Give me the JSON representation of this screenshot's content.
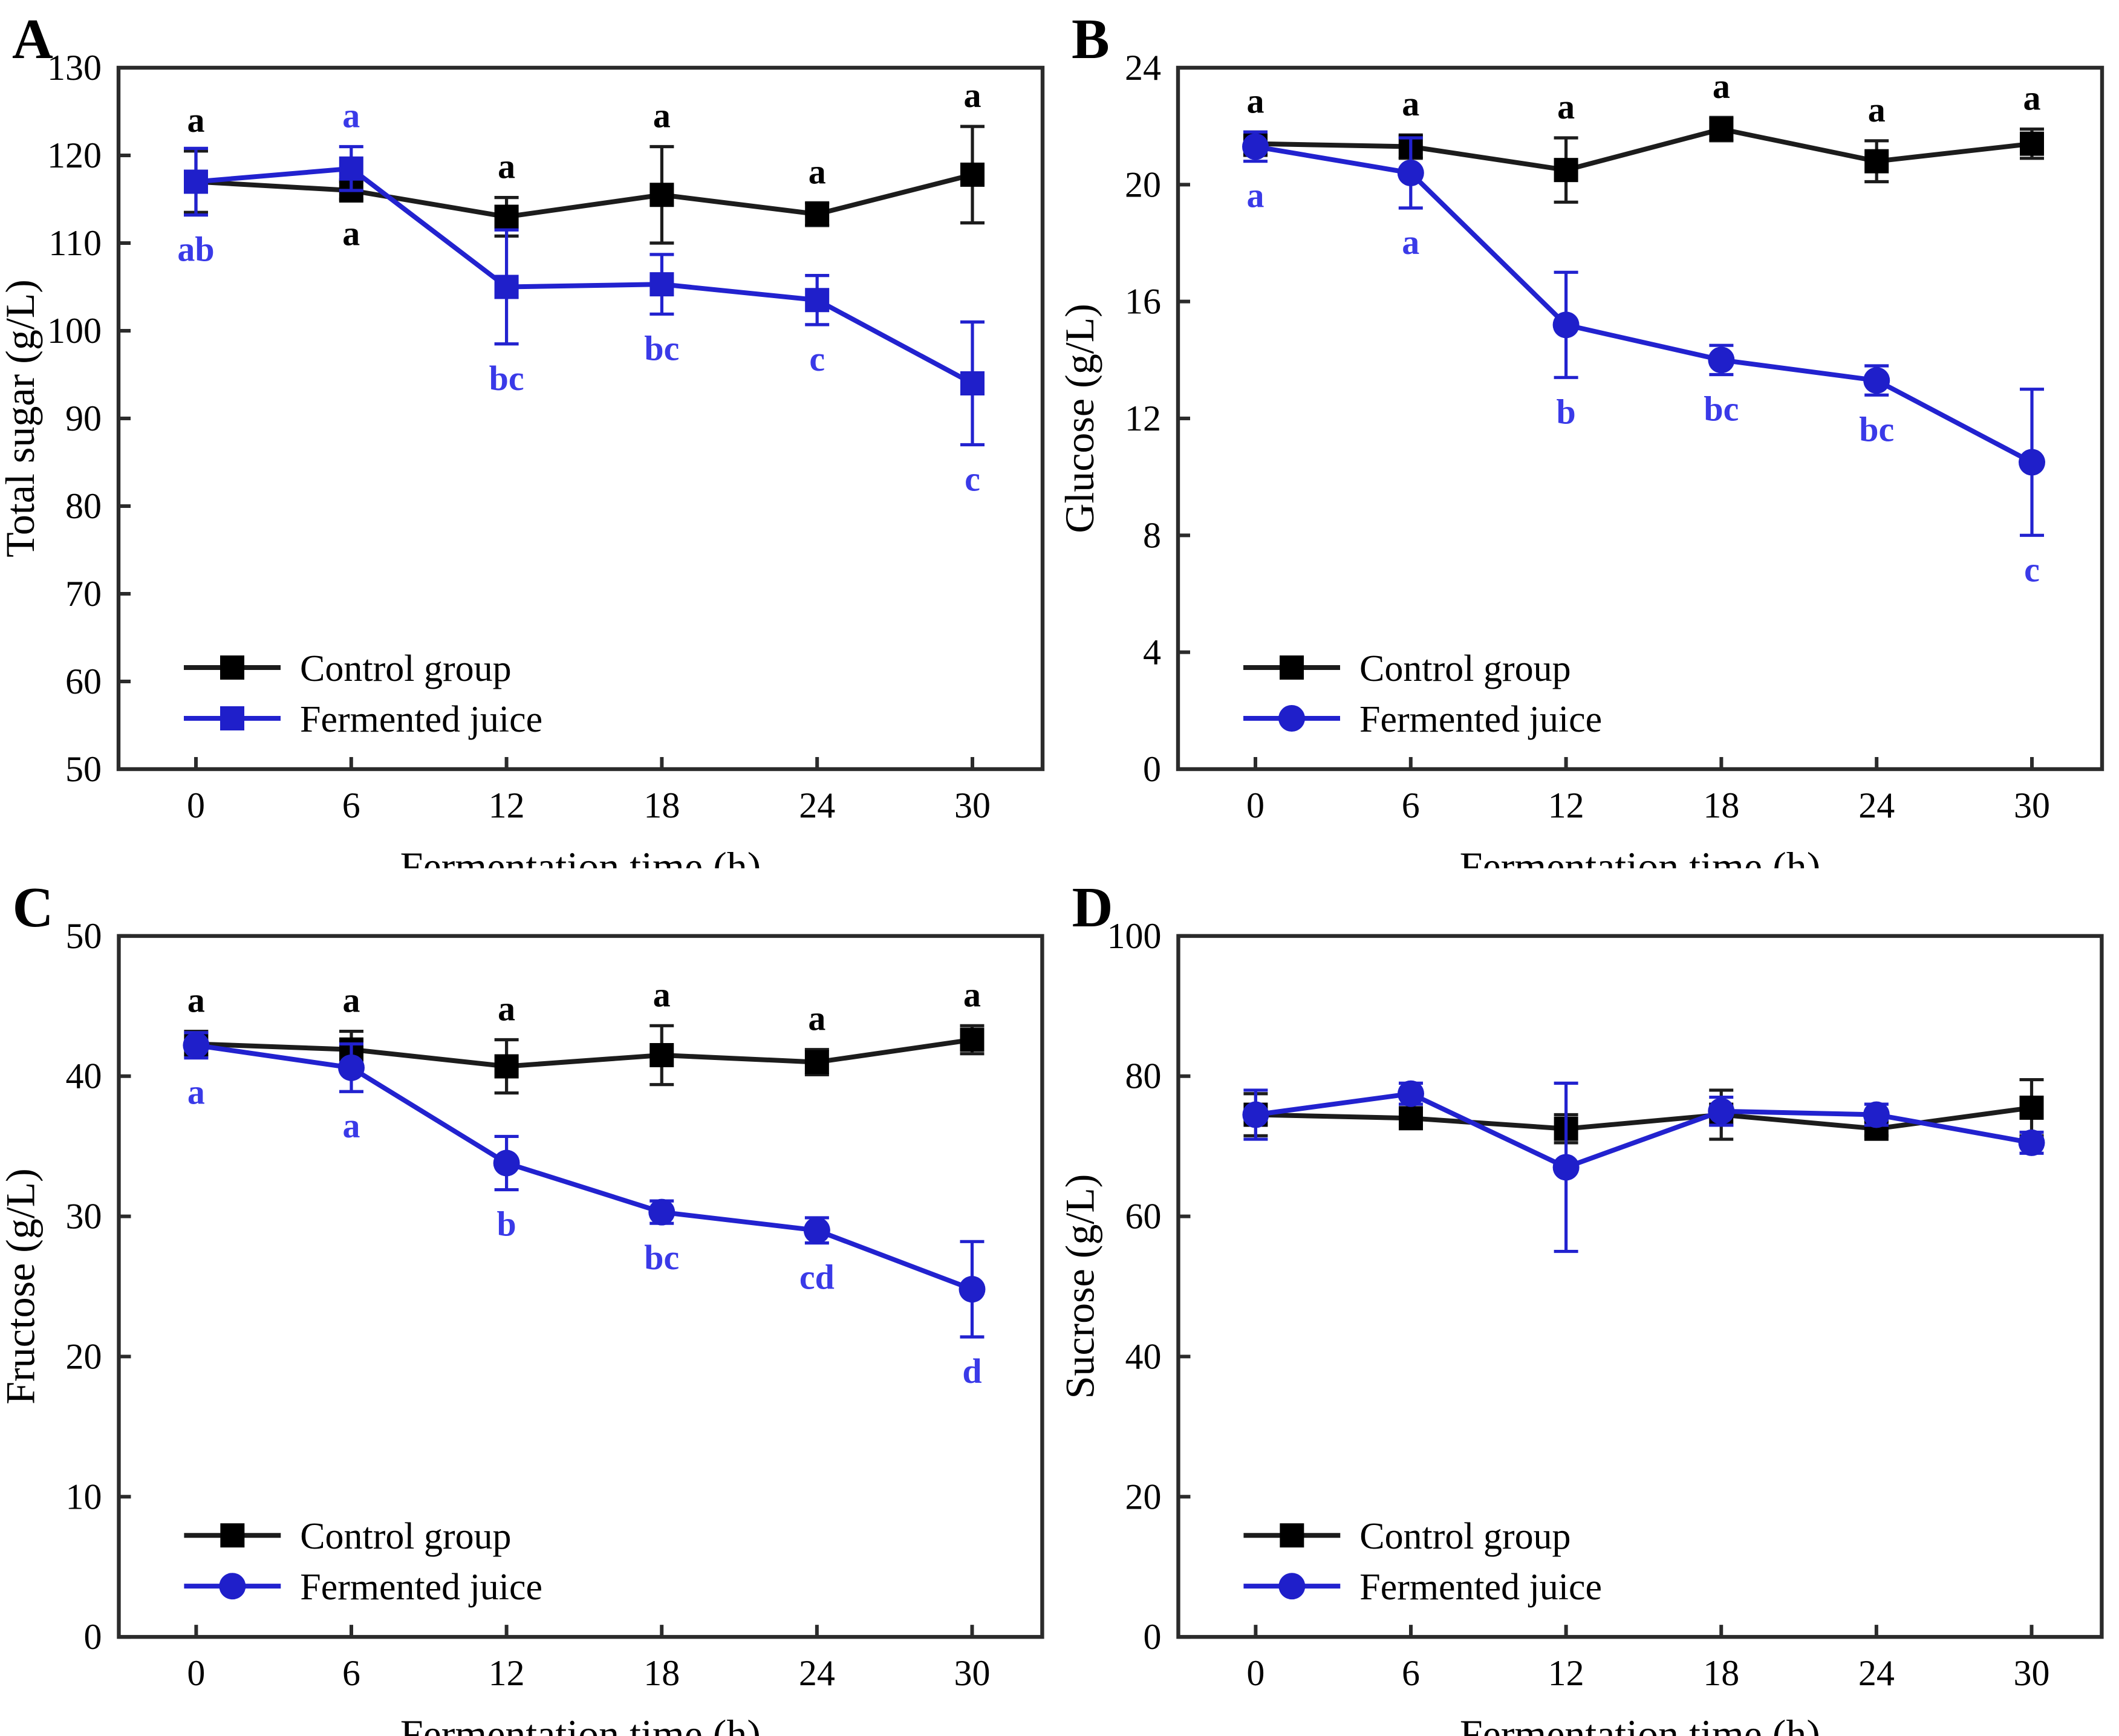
{
  "figure": {
    "background": "#ffffff",
    "x_axis_label": "Fermentation time (h)",
    "x_ticks": [
      0,
      6,
      12,
      18,
      24,
      30
    ],
    "legend": {
      "control_label": "Control group",
      "fermented_label": "Fermented juice"
    },
    "colors": {
      "control_line": "#1c1c1c",
      "control_marker": "#000000",
      "control_letter": "#000000",
      "fermented_line": "#2222cf",
      "fermented_marker": "#1f1fca",
      "fermented_letter": "#3a3ae8",
      "axis": "#2b2b2b",
      "tick_text": "#000000"
    }
  },
  "chart_data": [
    {
      "type": "line",
      "panel_letter": "A",
      "xlabel": "Fermentation time (h)",
      "ylabel": "Total sugar (g/L)",
      "ylim": [
        50,
        130
      ],
      "yticks": [
        50,
        60,
        70,
        80,
        90,
        100,
        110,
        120,
        130
      ],
      "x": [
        0,
        6,
        12,
        18,
        24,
        30
      ],
      "grid": false,
      "legend_position": "lower-left",
      "series": [
        {
          "name": "Control group",
          "marker": "square",
          "role": "control",
          "values": [
            117.0,
            116.0,
            113.0,
            115.5,
            113.3,
            117.8
          ],
          "errors": [
            3.5,
            1.0,
            2.2,
            5.5,
            1.3,
            5.5
          ],
          "letters": [
            "a",
            "a",
            "a",
            "a",
            "a",
            "a"
          ],
          "letter_side": [
            "above",
            "below",
            "above",
            "above",
            "above",
            "above"
          ]
        },
        {
          "name": "Fermented juice",
          "marker": "square",
          "role": "fermented",
          "values": [
            117.0,
            118.5,
            105.0,
            105.3,
            103.5,
            94.0
          ],
          "errors": [
            3.8,
            2.5,
            6.5,
            3.4,
            2.8,
            7.0
          ],
          "letters": [
            "ab",
            "a",
            "bc",
            "bc",
            "c",
            "c"
          ],
          "letter_side": [
            "below",
            "above",
            "below",
            "below",
            "below",
            "below"
          ]
        }
      ]
    },
    {
      "type": "line",
      "panel_letter": "B",
      "xlabel": "Fermentation time (h)",
      "ylabel": "Glucose  (g/L)",
      "ylim": [
        0,
        24
      ],
      "yticks": [
        0,
        4,
        8,
        12,
        16,
        20,
        24
      ],
      "x": [
        0,
        6,
        12,
        18,
        24,
        30
      ],
      "grid": false,
      "legend_position": "lower-left",
      "series": [
        {
          "name": "Control group",
          "marker": "square",
          "role": "control",
          "values": [
            21.4,
            21.3,
            20.5,
            21.9,
            20.8,
            21.4
          ],
          "errors": [
            0.4,
            0.4,
            1.1,
            0.4,
            0.7,
            0.5
          ],
          "letters": [
            "a",
            "a",
            "a",
            "a",
            "a",
            "a"
          ],
          "letter_side": [
            "above",
            "above",
            "above",
            "above",
            "above",
            "above"
          ]
        },
        {
          "name": "Fermented juice",
          "marker": "circle",
          "role": "fermented",
          "values": [
            21.3,
            20.4,
            15.2,
            14.0,
            13.3,
            10.5
          ],
          "errors": [
            0.5,
            1.2,
            1.8,
            0.5,
            0.5,
            2.5
          ],
          "letters": [
            "a",
            "a",
            "b",
            "bc",
            "bc",
            "c"
          ],
          "letter_side": [
            "below",
            "below",
            "below",
            "below",
            "below",
            "below"
          ]
        }
      ]
    },
    {
      "type": "line",
      "panel_letter": "C",
      "xlabel": "Fermentation time (h)",
      "ylabel": "Fructose (g/L)",
      "ylim": [
        0,
        50
      ],
      "yticks": [
        0,
        10,
        20,
        30,
        40,
        50
      ],
      "x": [
        0,
        6,
        12,
        18,
        24,
        30
      ],
      "grid": false,
      "legend_position": "lower-left",
      "series": [
        {
          "name": "Control group",
          "marker": "square",
          "role": "control",
          "values": [
            42.3,
            41.9,
            40.7,
            41.5,
            41.0,
            42.6
          ],
          "errors": [
            0.9,
            1.3,
            1.9,
            2.1,
            0.9,
            1.0
          ],
          "letters": [
            "a",
            "a",
            "a",
            "a",
            "a",
            "a"
          ],
          "letter_side": [
            "above",
            "above",
            "above",
            "above",
            "above",
            "above"
          ]
        },
        {
          "name": "Fermented juice",
          "marker": "circle",
          "role": "fermented",
          "values": [
            42.2,
            40.6,
            33.8,
            30.3,
            29.0,
            24.8
          ],
          "errors": [
            0.9,
            1.7,
            1.9,
            0.8,
            0.9,
            3.4
          ],
          "letters": [
            "a",
            "a",
            "b",
            "bc",
            "cd",
            "d"
          ],
          "letter_side": [
            "below",
            "below",
            "below",
            "below",
            "below",
            "below"
          ]
        }
      ]
    },
    {
      "type": "line",
      "panel_letter": "D",
      "xlabel": "Fermentation time (h)",
      "ylabel": "Sucrose (g/L)",
      "ylim": [
        0,
        100
      ],
      "yticks": [
        0,
        20,
        40,
        60,
        80,
        100
      ],
      "x": [
        0,
        6,
        12,
        18,
        24,
        30
      ],
      "grid": false,
      "legend_position": "lower-left",
      "series": [
        {
          "name": "Control group",
          "marker": "square",
          "role": "control",
          "values": [
            74.5,
            74.0,
            72.5,
            74.5,
            72.5,
            75.5
          ],
          "errors": [
            3.0,
            1.0,
            2.0,
            3.5,
            1.0,
            4.0
          ],
          "letters": null,
          "letter_side": null
        },
        {
          "name": "Fermented juice",
          "marker": "circle",
          "role": "fermented",
          "values": [
            74.5,
            77.5,
            67.0,
            75.0,
            74.5,
            70.5
          ],
          "errors": [
            3.5,
            1.5,
            12.0,
            2.0,
            1.5,
            1.5
          ],
          "letters": null,
          "letter_side": null
        }
      ]
    }
  ]
}
